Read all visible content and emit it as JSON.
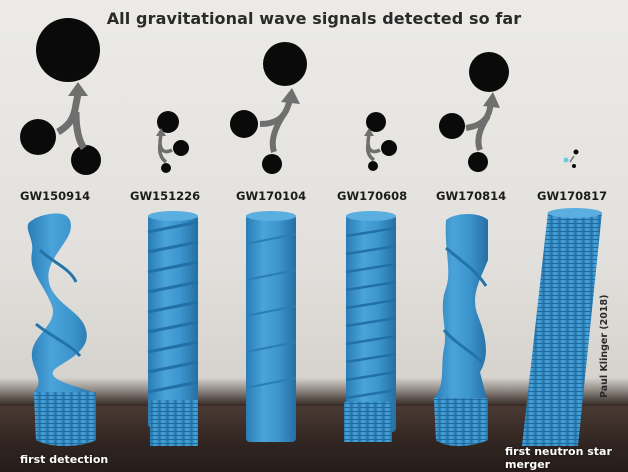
{
  "title": "All gravitational wave signals detected so far",
  "colors": {
    "model_blue": "#3f97cf",
    "model_blue_dark": "#2b78ad",
    "black_hole": "#0a0a0a",
    "arrow_gray": "#6f6f6f",
    "wall": "#e6e4e0",
    "table": "#2f2420"
  },
  "events": [
    {
      "name": "GW150914",
      "shape": "spiral-strong",
      "icon": "merger-large"
    },
    {
      "name": "GW151226",
      "shape": "twist-fine",
      "icon": "merger-small"
    },
    {
      "name": "GW170104",
      "shape": "twist-medium",
      "icon": "merger-large"
    },
    {
      "name": "GW170608",
      "shape": "twist-finer",
      "icon": "merger-small"
    },
    {
      "name": "GW170814",
      "shape": "spiral-medium",
      "icon": "merger-large"
    },
    {
      "name": "GW170817",
      "shape": "ribbed-dense",
      "icon": "merger-tiny-neutron"
    }
  ],
  "captions": {
    "first_detection": "first detection",
    "first_neutron_star_line1": "first neutron star",
    "first_neutron_star_line2": "merger"
  },
  "credit": "Paul Klinger (2018)"
}
